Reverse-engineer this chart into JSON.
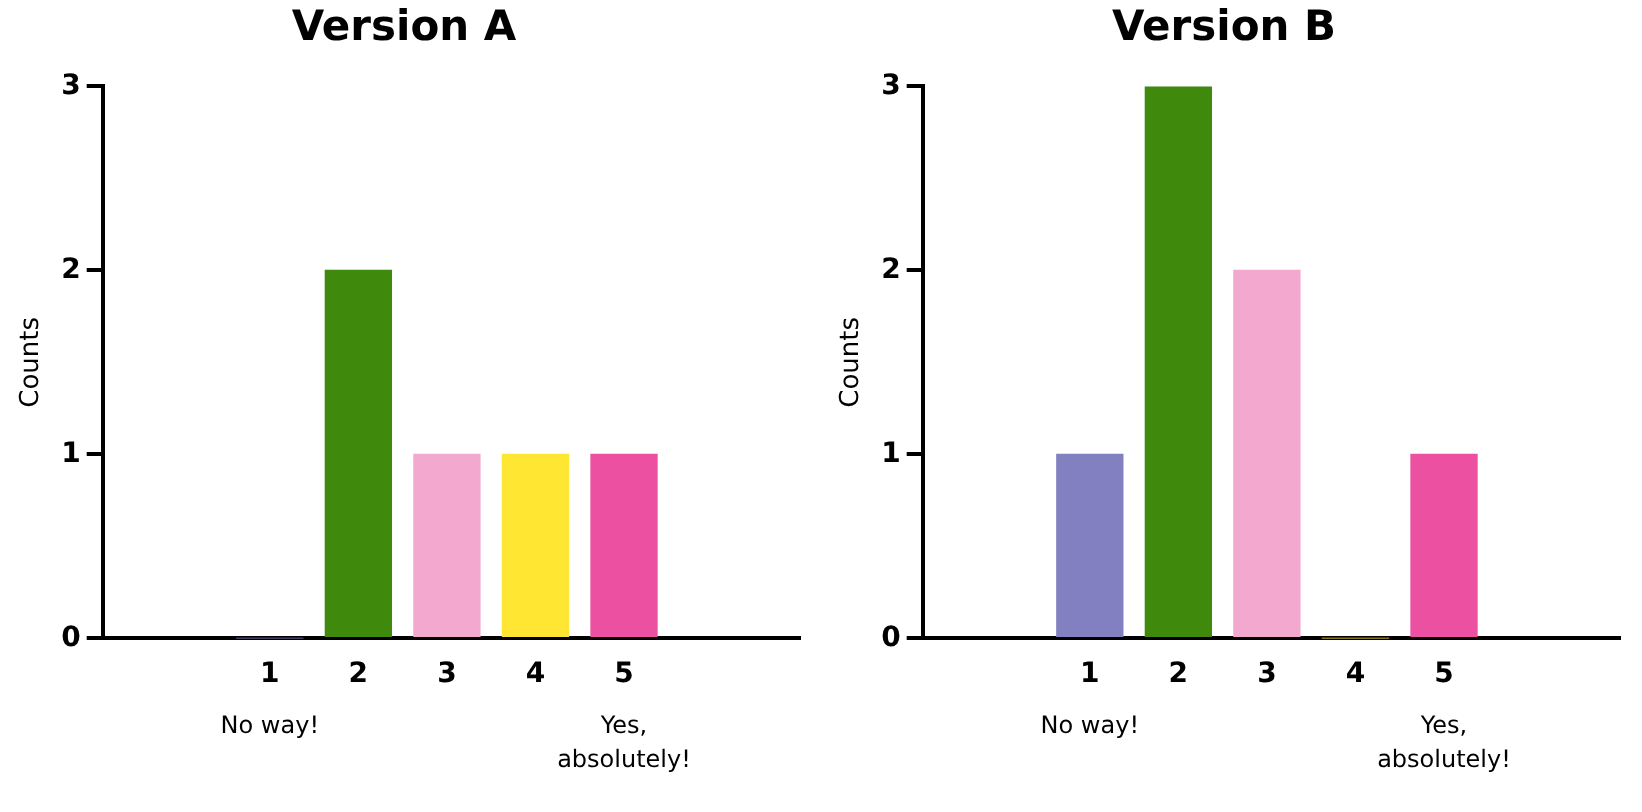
{
  "chart_data": [
    {
      "type": "bar",
      "title": "Version A",
      "ylabel": "Counts",
      "categories": [
        "1",
        "2",
        "3",
        "4",
        "5"
      ],
      "values": [
        0,
        2,
        1,
        1,
        1
      ],
      "colors": [
        "#8280c0",
        "#3f8a0d",
        "#f3a8d0",
        "#ffe632",
        "#ec50a0"
      ],
      "ylim": [
        0,
        3
      ],
      "yticks": [
        0,
        1,
        2,
        3
      ],
      "grid": false,
      "legend": false,
      "annotations": [
        "No way!",
        "Yes, absolutely!"
      ]
    },
    {
      "type": "bar",
      "title": "Version B",
      "ylabel": "Counts",
      "categories": [
        "1",
        "2",
        "3",
        "4",
        "5"
      ],
      "values": [
        1,
        3,
        2,
        0,
        1
      ],
      "colors": [
        "#8280c0",
        "#3f8a0d",
        "#f3a8d0",
        "#ffe632",
        "#ec50a0"
      ],
      "ylim": [
        0,
        3
      ],
      "yticks": [
        0,
        1,
        2,
        3
      ],
      "grid": false,
      "legend": false,
      "annotations": [
        "No way!",
        "Yes, absolutely!"
      ]
    }
  ]
}
